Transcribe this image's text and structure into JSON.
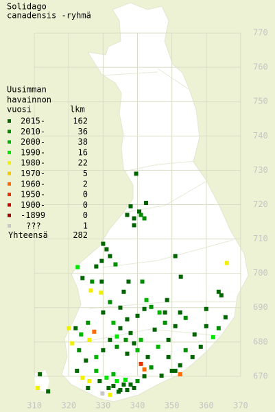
{
  "title": [
    "Solidago",
    "canadensis -ryhmä"
  ],
  "legend": {
    "heading": [
      "Uusimman",
      "havainnon",
      "vuosi"
    ],
    "count_header": "lkm",
    "rows": [
      {
        "label": "2015-",
        "count": 162,
        "color": "#006400"
      },
      {
        "label": "2010-",
        "count": 36,
        "color": "#008c00"
      },
      {
        "label": "2000-",
        "count": 38,
        "color": "#00b400"
      },
      {
        "label": "1990-",
        "count": 16,
        "color": "#00e600"
      },
      {
        "label": "1980-",
        "count": 22,
        "color": "#f0f000"
      },
      {
        "label": "1970-",
        "count": 5,
        "color": "#f5c800"
      },
      {
        "label": "1960-",
        "count": 2,
        "color": "#ff6a00"
      },
      {
        "label": "1950-",
        "count": 0,
        "color": "#e63200"
      },
      {
        "label": "1900-",
        "count": 0,
        "color": "#c80000"
      },
      {
        "label": "-1899",
        "count": 0,
        "color": "#a00000"
      },
      {
        "label": "???",
        "count": 1,
        "color": "#c8c8c8"
      }
    ],
    "total_label": "Yhteensä",
    "total": 282
  },
  "grid": {
    "xlim": [
      300,
      380
    ],
    "ylim": [
      659.6,
      779.6
    ],
    "xticks": [
      310,
      320,
      330,
      340,
      350,
      360,
      370
    ],
    "yticks": [
      670,
      680,
      690,
      700,
      710,
      720,
      730,
      740,
      750,
      760,
      770
    ]
  },
  "records": [
    [
      339.6,
      729,
      0
    ],
    [
      338,
      719.5,
      0
    ],
    [
      342.5,
      720.5,
      0
    ],
    [
      340.5,
      718,
      0
    ],
    [
      337,
      717,
      0
    ],
    [
      341,
      717,
      1
    ],
    [
      339,
      716,
      0
    ],
    [
      342,
      716,
      1
    ],
    [
      339,
      714,
      0
    ],
    [
      330,
      708.6,
      0
    ],
    [
      331,
      707,
      0
    ],
    [
      329.6,
      703.6,
      0
    ],
    [
      332,
      705,
      0
    ],
    [
      328,
      702,
      0
    ],
    [
      333.6,
      702.6,
      1
    ],
    [
      351,
      705,
      0
    ],
    [
      322.6,
      701.8,
      3
    ],
    [
      326.4,
      695,
      4
    ],
    [
      329.4,
      694.4,
      4
    ],
    [
      324,
      698.6,
      0
    ],
    [
      326.8,
      697.6,
      1
    ],
    [
      329.6,
      697.6,
      0
    ],
    [
      337.4,
      697.6,
      0
    ],
    [
      341.4,
      697.6,
      1
    ],
    [
      336,
      694.6,
      0
    ],
    [
      342.6,
      692.2,
      2
    ],
    [
      348.6,
      692.2,
      0
    ],
    [
      366,
      703,
      4
    ],
    [
      363.6,
      694.6,
      0
    ],
    [
      364.4,
      693.6,
      0
    ],
    [
      352.6,
      699,
      0
    ],
    [
      342,
      689.6,
      0
    ],
    [
      344,
      690.2,
      1
    ],
    [
      346.4,
      688.6,
      2
    ],
    [
      340,
      687.6,
      0
    ],
    [
      337,
      686.6,
      0
    ],
    [
      333,
      685.6,
      2
    ],
    [
      335,
      684,
      0
    ],
    [
      338,
      682.6,
      0
    ],
    [
      334,
      681.6,
      3
    ],
    [
      332,
      680.6,
      0
    ],
    [
      336.6,
      680.6,
      1
    ],
    [
      339,
      679.6,
      0
    ],
    [
      341,
      680.6,
      2
    ],
    [
      345,
      683.6,
      0
    ],
    [
      348,
      685.6,
      1
    ],
    [
      351,
      684.6,
      0
    ],
    [
      356.6,
      682.2,
      0
    ],
    [
      360,
      684.6,
      0
    ],
    [
      365.6,
      687.2,
      0
    ],
    [
      363.6,
      684,
      1
    ],
    [
      362,
      681.4,
      3
    ],
    [
      358.4,
      678.6,
      0
    ],
    [
      356,
      675.6,
      0
    ],
    [
      352.4,
      673.2,
      0
    ],
    [
      350,
      671.6,
      0
    ],
    [
      351,
      671.6,
      0
    ],
    [
      352.4,
      670.6,
      6
    ],
    [
      347,
      670.2,
      0
    ],
    [
      344,
      672.6,
      1
    ],
    [
      343,
      675.6,
      0
    ],
    [
      340,
      677.6,
      2
    ],
    [
      337,
      676.6,
      0
    ],
    [
      334,
      678.6,
      1
    ],
    [
      330,
      677.6,
      0
    ],
    [
      328,
      675.6,
      2
    ],
    [
      325,
      674.6,
      0
    ],
    [
      323,
      677.6,
      1
    ],
    [
      321,
      679.6,
      4
    ],
    [
      320,
      684,
      4
    ],
    [
      322,
      684,
      0
    ],
    [
      323.6,
      682.2,
      2
    ],
    [
      327.4,
      683,
      6
    ],
    [
      326,
      680.6,
      4
    ],
    [
      322.4,
      671.6,
      0
    ],
    [
      324,
      669.6,
      4
    ],
    [
      326,
      668.6,
      4
    ],
    [
      325.6,
      666.6,
      0
    ],
    [
      328,
      671.6,
      2
    ],
    [
      331.6,
      666.6,
      0
    ],
    [
      332,
      664.6,
      4
    ],
    [
      334,
      668.6,
      3
    ],
    [
      336,
      667.6,
      0
    ],
    [
      338,
      667.6,
      0
    ],
    [
      335,
      666,
      0
    ],
    [
      337,
      666,
      0
    ],
    [
      339,
      666.6,
      0
    ],
    [
      340,
      668.6,
      1
    ],
    [
      342,
      670,
      0
    ],
    [
      341,
      673.6,
      7
    ],
    [
      342,
      672,
      6
    ],
    [
      333,
      670.6,
      2
    ],
    [
      331,
      669.6,
      3
    ],
    [
      329,
      668.6,
      0
    ],
    [
      311.6,
      670.6,
      0
    ],
    [
      311,
      666.6,
      4
    ],
    [
      314,
      665.6,
      0
    ],
    [
      325.6,
      685.6,
      1
    ],
    [
      330,
      688.6,
      0
    ],
    [
      332,
      691.6,
      1
    ],
    [
      335,
      690,
      0
    ],
    [
      348,
      688.6,
      0
    ],
    [
      352.4,
      688.6,
      0
    ],
    [
      354,
      687,
      1
    ],
    [
      349,
      680.6,
      0
    ],
    [
      346,
      678.6,
      2
    ],
    [
      349,
      675.6,
      0
    ],
    [
      354,
      677.6,
      1
    ],
    [
      360,
      689.6,
      0
    ],
    [
      333,
      667.2,
      0
    ],
    [
      334.5,
      665.5,
      0
    ],
    [
      336.5,
      669,
      3
    ],
    [
      329.8,
      665,
      10
    ]
  ]
}
